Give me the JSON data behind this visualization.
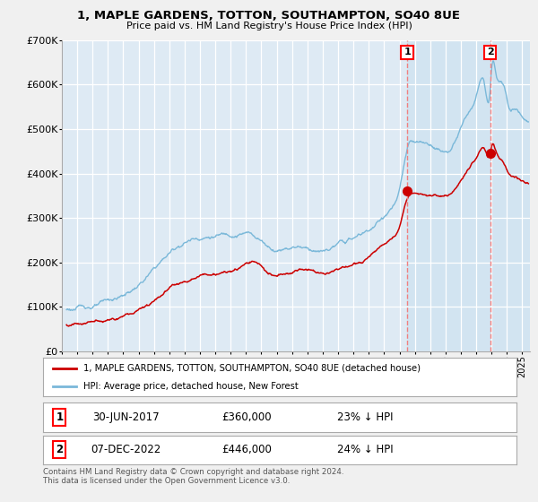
{
  "title": "1, MAPLE GARDENS, TOTTON, SOUTHAMPTON, SO40 8UE",
  "subtitle": "Price paid vs. HM Land Registry's House Price Index (HPI)",
  "legend_line1": "1, MAPLE GARDENS, TOTTON, SOUTHAMPTON, SO40 8UE (detached house)",
  "legend_line2": "HPI: Average price, detached house, New Forest",
  "annotation1": {
    "label": "1",
    "date": "30-JUN-2017",
    "price": "£360,000",
    "pct": "23% ↓ HPI",
    "x_year": 2017.5
  },
  "annotation2": {
    "label": "2",
    "date": "07-DEC-2022",
    "price": "£446,000",
    "pct": "24% ↓ HPI",
    "x_year": 2022.92
  },
  "footer": "Contains HM Land Registry data © Crown copyright and database right 2024.\nThis data is licensed under the Open Government Licence v3.0.",
  "hpi_color": "#7ab8d9",
  "paid_color": "#cc0000",
  "vline_color": "#f08080",
  "highlight_bg": "#deeaf4",
  "plot_bg_color": "#deeaf4",
  "fig_bg_color": "#f0f0f0",
  "ylim": [
    0,
    700000
  ],
  "xlim_start": 1995.3,
  "xlim_end": 2025.5,
  "yticks": [
    0,
    100000,
    200000,
    300000,
    400000,
    500000,
    600000,
    700000
  ],
  "ylabels": [
    "£0",
    "£100K",
    "£200K",
    "£300K",
    "£400K",
    "£500K",
    "£600K",
    "£700K"
  ],
  "paid_marker1_y": 360000,
  "paid_marker2_y": 446000,
  "hpi_at_2017": 467000,
  "hpi_at_2022": 587000
}
